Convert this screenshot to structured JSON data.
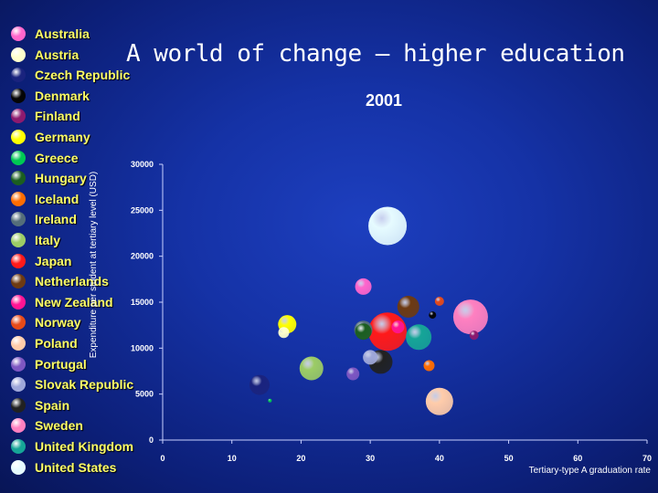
{
  "chart_data": {
    "type": "scatter",
    "title": "A world of change – higher education",
    "subtitle": "2001",
    "xlabel": "Tertiary-type A graduation rate",
    "ylabel": "Expenditure per student at tertiary level (USD)",
    "xlim": [
      0,
      70
    ],
    "ylim": [
      0,
      30000
    ],
    "x_ticks": [
      "0",
      "10",
      "20",
      "30",
      "40",
      "50",
      "60",
      "70"
    ],
    "y_ticks": [
      "0",
      "5000",
      "10000",
      "15000",
      "20000",
      "25000",
      "30000"
    ],
    "legend_position": "left",
    "series": [
      {
        "name": "Australia",
        "color": "#ff66cc",
        "x": 29,
        "y": 16700,
        "size": 9
      },
      {
        "name": "Austria",
        "color": "#ffffcc",
        "x": 17.5,
        "y": 11700,
        "size": 6
      },
      {
        "name": "Czech Republic",
        "color": "#1a237e",
        "x": 14,
        "y": 6000,
        "size": 11
      },
      {
        "name": "Denmark",
        "color": "#050505",
        "x": 39,
        "y": 13600,
        "size": 4
      },
      {
        "name": "Finland",
        "color": "#8e1a6e",
        "x": 45,
        "y": 11400,
        "size": 5
      },
      {
        "name": "Germany",
        "color": "#ffff00",
        "x": 18,
        "y": 12600,
        "size": 10
      },
      {
        "name": "Greece",
        "color": "#00c853",
        "x": 15.5,
        "y": 4300,
        "size": 2
      },
      {
        "name": "Hungary",
        "color": "#1b5e20",
        "x": 29,
        "y": 11800,
        "size": 9
      },
      {
        "name": "Iceland",
        "color": "#ff6d00",
        "x": 38.5,
        "y": 8100,
        "size": 6
      },
      {
        "name": "Ireland",
        "color": "#546e7a",
        "x": 29,
        "y": 12000,
        "size": 10
      },
      {
        "name": "Italy",
        "color": "#9ccc65",
        "x": 21.5,
        "y": 7800,
        "size": 13
      },
      {
        "name": "Japan",
        "color": "#ff1a1a",
        "x": 32.5,
        "y": 11800,
        "size": 21
      },
      {
        "name": "Netherlands",
        "color": "#6d3a12",
        "x": 35.5,
        "y": 14500,
        "size": 12
      },
      {
        "name": "New Zealand",
        "color": "#ff1493",
        "x": 34,
        "y": 12300,
        "size": 7
      },
      {
        "name": "Norway",
        "color": "#e64a19",
        "x": 40,
        "y": 15100,
        "size": 5
      },
      {
        "name": "Poland",
        "color": "#ffccaa",
        "x": 40,
        "y": 4200,
        "size": 15
      },
      {
        "name": "Portugal",
        "color": "#7e57c2",
        "x": 27.5,
        "y": 7200,
        "size": 7
      },
      {
        "name": "Slovak Republic",
        "color": "#9fa8da",
        "x": 30,
        "y": 9000,
        "size": 8
      },
      {
        "name": "Spain",
        "color": "#212121",
        "x": 31.5,
        "y": 8500,
        "size": 13
      },
      {
        "name": "Sweden",
        "color": "#ff80c0",
        "x": 44.5,
        "y": 13400,
        "size": 19
      },
      {
        "name": "United Kingdom",
        "color": "#16a597",
        "x": 37,
        "y": 11200,
        "size": 14
      },
      {
        "name": "United States",
        "color": "#e6fbff",
        "x": 32.5,
        "y": 23300,
        "size": 21
      }
    ]
  }
}
